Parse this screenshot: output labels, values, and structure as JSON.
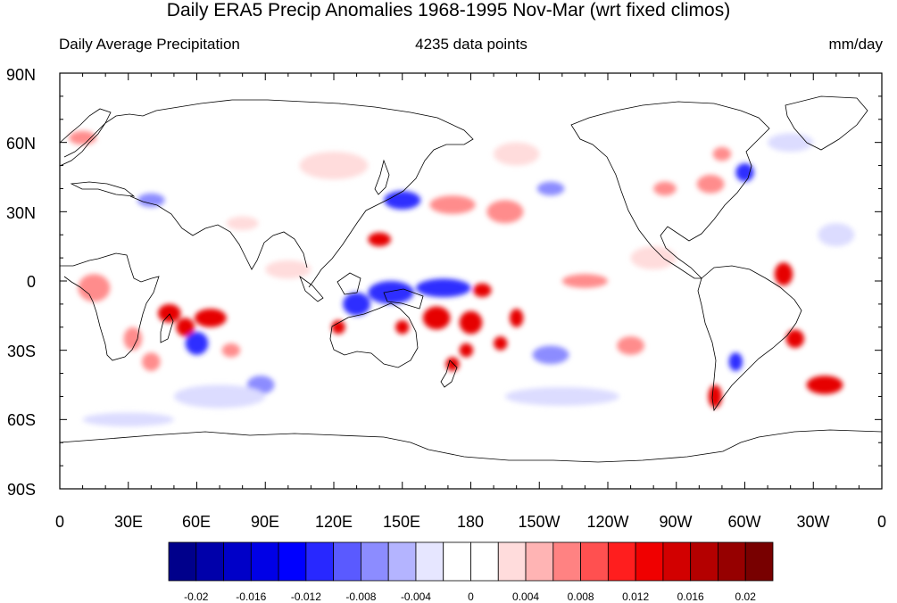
{
  "title": "Daily ERA5 Precip Anomalies 1968-1995 Nov-Mar (wrt fixed climos)",
  "subtitle_left": "Daily Average Precipitation",
  "subtitle_center": "4235 data points",
  "subtitle_right": "mm/day",
  "lat_labels": [
    "90N",
    "60N",
    "30N",
    "0",
    "30S",
    "60S",
    "90S"
  ],
  "lon_labels": [
    "0",
    "30E",
    "60E",
    "90E",
    "120E",
    "150E",
    "180",
    "150W",
    "120W",
    "90W",
    "60W",
    "30W",
    "0"
  ],
  "colorbar": {
    "colors": [
      "#00008b",
      "#0000aa",
      "#0000c8",
      "#0000e6",
      "#0000ff",
      "#2828ff",
      "#5a5aff",
      "#8c8cff",
      "#b4b4ff",
      "#e6e6ff",
      "#ffffff",
      "#ffffff",
      "#ffdcdc",
      "#ffb4b4",
      "#ff8282",
      "#ff5050",
      "#ff1e1e",
      "#f00000",
      "#d20000",
      "#b40000",
      "#960000",
      "#780000"
    ],
    "tick_labels": [
      "-0.02",
      "-0.016",
      "-0.012",
      "-0.008",
      "-0.004",
      "0",
      "0.004",
      "0.008",
      "0.012",
      "0.016",
      "0.02"
    ]
  },
  "anomaly_colors": {
    "strong_neg": "#2d2dff",
    "mid_neg": "#8c8cff",
    "weak_neg": "#dcdcff",
    "weak_pos": "#ffdcdc",
    "mid_pos": "#ff8c8c",
    "strong_pos": "#e60000"
  },
  "anomalies": [
    {
      "lon": 15,
      "lat": -3,
      "rlon": 7,
      "rlat": 6,
      "level": "mid_pos"
    },
    {
      "lon": 32,
      "lat": -25,
      "rlon": 4,
      "rlat": 5,
      "level": "mid_pos"
    },
    {
      "lon": 48,
      "lat": -14,
      "rlon": 5,
      "rlat": 4,
      "level": "strong_pos"
    },
    {
      "lon": 55,
      "lat": -20,
      "rlon": 4,
      "rlat": 4,
      "level": "strong_pos"
    },
    {
      "lon": 66,
      "lat": -16,
      "rlon": 7,
      "rlat": 4,
      "level": "strong_pos"
    },
    {
      "lon": 60,
      "lat": -27,
      "rlon": 5,
      "rlat": 5,
      "level": "strong_neg"
    },
    {
      "lon": 75,
      "lat": -30,
      "rlon": 4,
      "rlat": 3,
      "level": "mid_pos"
    },
    {
      "lon": 88,
      "lat": -45,
      "rlon": 6,
      "rlat": 4,
      "level": "mid_neg"
    },
    {
      "lon": 40,
      "lat": -35,
      "rlon": 4,
      "rlat": 4,
      "level": "mid_pos"
    },
    {
      "lon": 130,
      "lat": -10,
      "rlon": 6,
      "rlat": 5,
      "level": "strong_neg"
    },
    {
      "lon": 145,
      "lat": -5,
      "rlon": 10,
      "rlat": 5,
      "level": "strong_neg"
    },
    {
      "lon": 168,
      "lat": -3,
      "rlon": 12,
      "rlat": 4,
      "level": "strong_neg"
    },
    {
      "lon": 122,
      "lat": -20,
      "rlon": 3,
      "rlat": 3,
      "level": "strong_pos"
    },
    {
      "lon": 150,
      "lat": -20,
      "rlon": 3,
      "rlat": 3,
      "level": "strong_pos"
    },
    {
      "lon": 165,
      "lat": -16,
      "rlon": 6,
      "rlat": 5,
      "level": "strong_pos"
    },
    {
      "lon": 180,
      "lat": -18,
      "rlon": 5,
      "rlat": 5,
      "level": "strong_pos"
    },
    {
      "lon": 185,
      "lat": -4,
      "rlon": 4,
      "rlat": 3,
      "level": "strong_pos"
    },
    {
      "lon": 200,
      "lat": -16,
      "rlon": 3,
      "rlat": 4,
      "level": "strong_pos"
    },
    {
      "lon": 172,
      "lat": -36,
      "rlon": 3,
      "rlat": 3,
      "level": "strong_pos"
    },
    {
      "lon": 193,
      "lat": -27,
      "rlon": 3,
      "rlat": 3,
      "level": "strong_pos"
    },
    {
      "lon": 178,
      "lat": -30,
      "rlon": 3,
      "rlat": 3,
      "level": "strong_pos"
    },
    {
      "lon": 150,
      "lat": 35,
      "rlon": 8,
      "rlat": 4,
      "level": "strong_neg"
    },
    {
      "lon": 140,
      "lat": 18,
      "rlon": 5,
      "rlat": 3,
      "level": "strong_pos"
    },
    {
      "lon": 172,
      "lat": 33,
      "rlon": 10,
      "rlat": 4,
      "level": "mid_pos"
    },
    {
      "lon": 195,
      "lat": 30,
      "rlon": 8,
      "rlat": 5,
      "level": "mid_pos"
    },
    {
      "lon": 215,
      "lat": 40,
      "rlon": 6,
      "rlat": 3,
      "level": "mid_neg"
    },
    {
      "lon": 265,
      "lat": 40,
      "rlon": 5,
      "rlat": 3,
      "level": "mid_pos"
    },
    {
      "lon": 285,
      "lat": 42,
      "rlon": 6,
      "rlat": 4,
      "level": "mid_pos"
    },
    {
      "lon": 290,
      "lat": 55,
      "rlon": 4,
      "rlat": 3,
      "level": "mid_pos"
    },
    {
      "lon": 300,
      "lat": 47,
      "rlon": 4,
      "rlat": 4,
      "level": "strong_neg"
    },
    {
      "lon": 317,
      "lat": 3,
      "rlon": 4,
      "rlat": 5,
      "level": "strong_pos"
    },
    {
      "lon": 322,
      "lat": -25,
      "rlon": 4,
      "rlat": 4,
      "level": "strong_pos"
    },
    {
      "lon": 335,
      "lat": -45,
      "rlon": 8,
      "rlat": 4,
      "level": "strong_pos"
    },
    {
      "lon": 287,
      "lat": -50,
      "rlon": 3,
      "rlat": 5,
      "level": "strong_pos"
    },
    {
      "lon": 296,
      "lat": -35,
      "rlon": 3,
      "rlat": 4,
      "level": "strong_neg"
    },
    {
      "lon": 230,
      "lat": 0,
      "rlon": 10,
      "rlat": 3,
      "level": "mid_pos"
    },
    {
      "lon": 215,
      "lat": -32,
      "rlon": 8,
      "rlat": 4,
      "level": "mid_neg"
    },
    {
      "lon": 250,
      "lat": -28,
      "rlon": 6,
      "rlat": 4,
      "level": "mid_pos"
    },
    {
      "lon": 10,
      "lat": 62,
      "rlon": 6,
      "rlat": 3,
      "level": "mid_pos"
    },
    {
      "lon": 40,
      "lat": 35,
      "rlon": 6,
      "rlat": 3,
      "level": "mid_neg"
    },
    {
      "lon": 80,
      "lat": 25,
      "rlon": 7,
      "rlat": 3,
      "level": "weak_pos"
    },
    {
      "lon": 100,
      "lat": 5,
      "rlon": 10,
      "rlat": 4,
      "level": "weak_pos"
    },
    {
      "lon": 70,
      "lat": -50,
      "rlon": 20,
      "rlat": 5,
      "level": "weak_neg"
    },
    {
      "lon": 220,
      "lat": -50,
      "rlon": 25,
      "rlat": 4,
      "level": "weak_neg"
    },
    {
      "lon": 340,
      "lat": 20,
      "rlon": 8,
      "rlat": 5,
      "level": "weak_neg"
    },
    {
      "lon": 260,
      "lat": 10,
      "rlon": 10,
      "rlat": 5,
      "level": "weak_pos"
    },
    {
      "lon": 120,
      "lat": 50,
      "rlon": 15,
      "rlat": 6,
      "level": "weak_pos"
    },
    {
      "lon": 200,
      "lat": 55,
      "rlon": 10,
      "rlat": 5,
      "level": "weak_pos"
    },
    {
      "lon": 320,
      "lat": 60,
      "rlon": 10,
      "rlat": 4,
      "level": "weak_neg"
    },
    {
      "lon": 30,
      "lat": -60,
      "rlon": 20,
      "rlat": 3,
      "level": "weak_neg"
    }
  ]
}
